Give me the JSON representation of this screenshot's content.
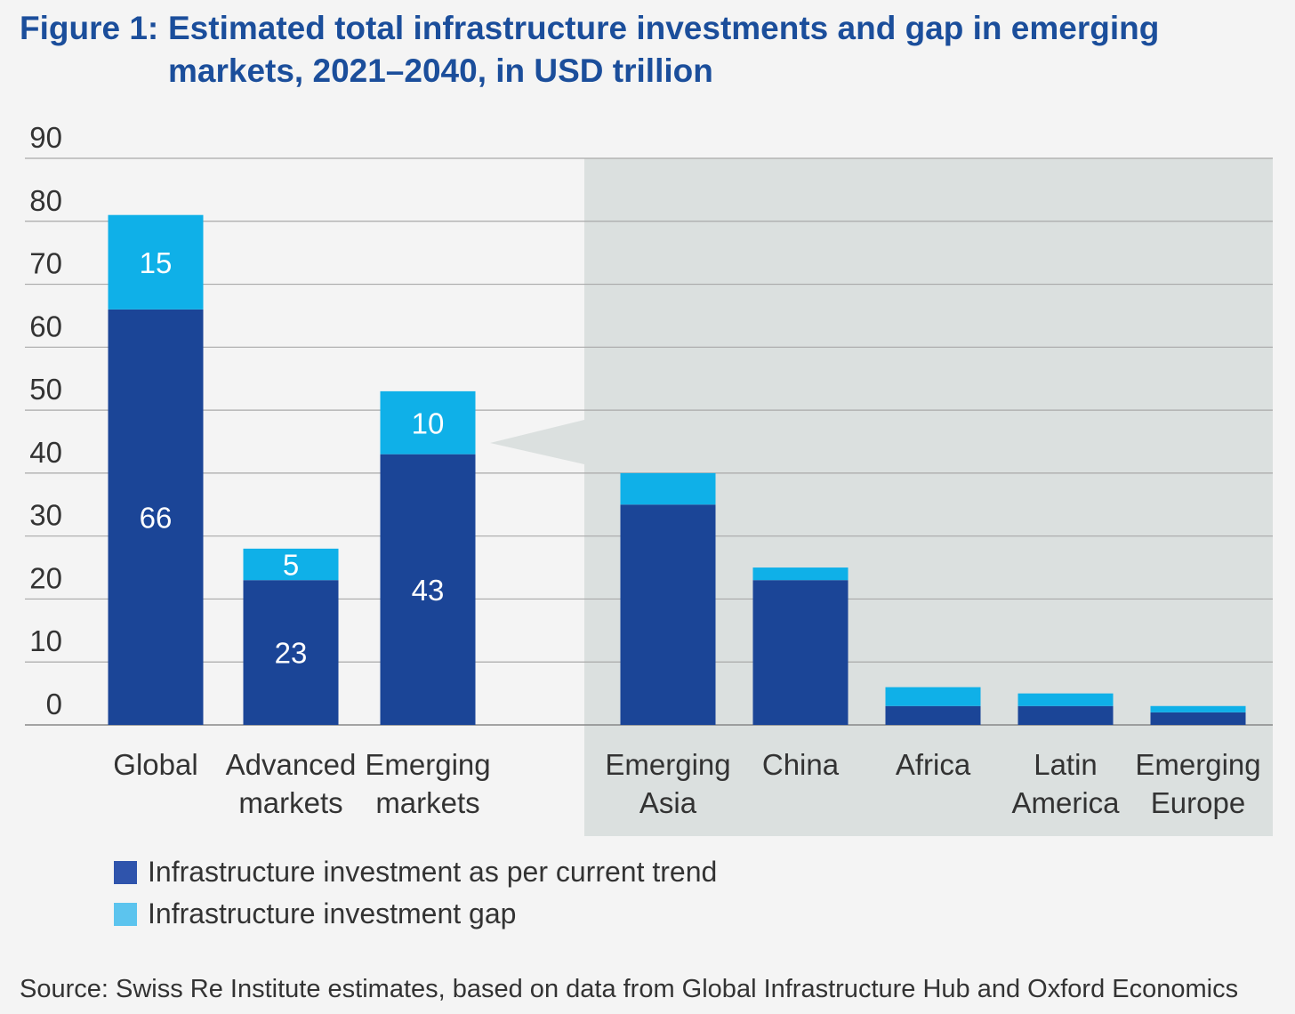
{
  "figure_label": "Figure 1:",
  "colors": {
    "trend": "#1b4597",
    "gap": "#0fb0e8",
    "panel": "#dbe0df",
    "background": "#f4f4f4",
    "title": "#1b4e9b",
    "legend_trend": "#2f54ac",
    "legend_gap": "#5cc4ee"
  },
  "legend": [
    {
      "label": "Infrastructure investment as per current trend",
      "color_key": "legend_trend"
    },
    {
      "label": "Infrastructure investment gap",
      "color_key": "legend_gap"
    }
  ],
  "source": "Source: Swiss Re Institute estimates, based on data from Global Infrastructure Hub and Oxford Economics",
  "chart_data": {
    "type": "bar",
    "stacked": true,
    "title": "Estimated total infrastructure investments and gap in emerging markets, 2021–2040, in USD trillion",
    "xlabel": "",
    "ylabel": "",
    "ylim": [
      0,
      90
    ],
    "yticks": [
      "0",
      "10",
      "20",
      "30",
      "40",
      "50",
      "60",
      "70",
      "80",
      "90"
    ],
    "grid": true,
    "categories": [
      [
        "Global"
      ],
      [
        "Advanced",
        "markets"
      ],
      [
        "Emerging",
        "markets"
      ],
      [
        "Emerging",
        "Asia"
      ],
      [
        "China"
      ],
      [
        "Africa"
      ],
      [
        "Latin",
        "America"
      ],
      [
        "Emerging",
        "Europe"
      ]
    ],
    "series": [
      {
        "name": "Infrastructure investment as per current trend",
        "values": [
          66,
          23,
          43,
          35,
          23,
          3,
          3,
          2
        ],
        "labels": [
          "66",
          "23",
          "43",
          "",
          "",
          "",
          "",
          ""
        ]
      },
      {
        "name": "Infrastructure investment gap",
        "values": [
          15,
          5,
          10,
          5,
          2,
          3,
          2,
          1
        ],
        "labels": [
          "15",
          "5",
          "10",
          "",
          "",
          "",
          "",
          ""
        ]
      }
    ],
    "highlighted_breakdown_of": "Emerging markets",
    "breakdown_categories": [
      3,
      4,
      5,
      6,
      7
    ]
  }
}
